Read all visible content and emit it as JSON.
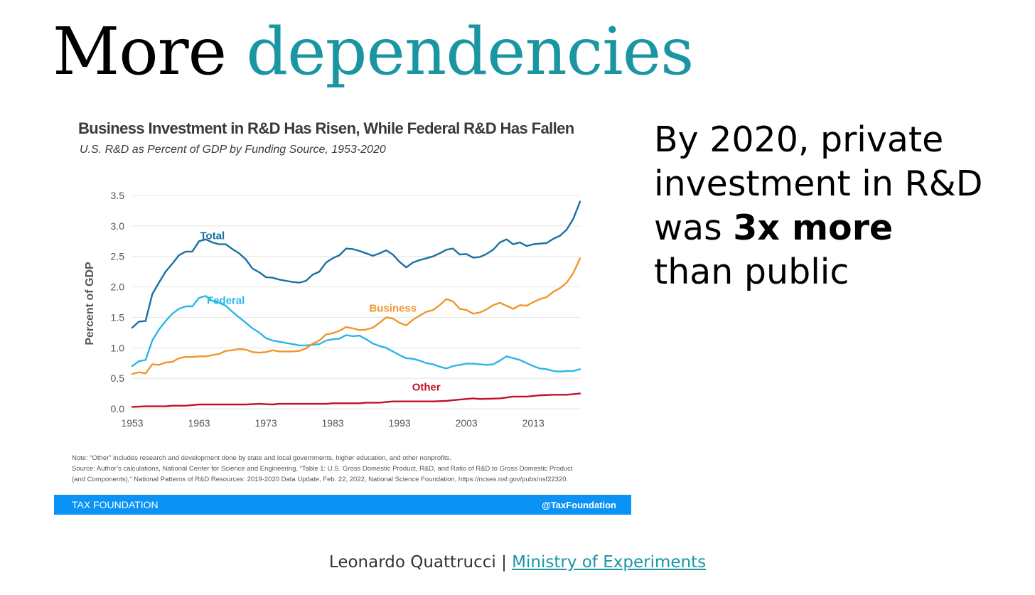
{
  "slide": {
    "title_part1": "More",
    "title_part2": "dependencies",
    "side_line1": "By 2020, private",
    "side_line2": "investment in R&D",
    "side_line3_prefix": "was",
    "side_line3_bold": "3x more",
    "side_line4": "than public",
    "credit_author": "Leonardo Quattrucci |",
    "credit_link": "Ministry of Experiments"
  },
  "colors": {
    "title_accent": "#1a96a3",
    "total": "#1a6fa3",
    "federal": "#29b6e8",
    "business": "#f0962a",
    "other": "#c0102a",
    "footer": "#0a93f5"
  },
  "chart_data": {
    "type": "line",
    "title": "Business Investment in R&D Has Risen, While Federal R&D Has Fallen",
    "subtitle": "U.S. R&D as Percent of GDP by Funding Source, 1953-2020",
    "xlabel": "",
    "ylabel": "Percent of GDP",
    "xlim": [
      1953,
      2020
    ],
    "ylim": [
      0,
      3.5
    ],
    "xticks": [
      1953,
      1963,
      1973,
      1983,
      1993,
      2003,
      2013
    ],
    "yticks": [
      "0.0",
      "0.5",
      "1.0",
      "1.5",
      "2.0",
      "2.5",
      "3.0",
      "3.5"
    ],
    "grid": true,
    "series": [
      {
        "name": "Total",
        "color": "#1a6fa3",
        "label_at": [
          1965,
          2.78
        ],
        "points": [
          [
            1953,
            1.33
          ],
          [
            1954,
            1.43
          ],
          [
            1955,
            1.44
          ],
          [
            1956,
            1.88
          ],
          [
            1957,
            2.07
          ],
          [
            1958,
            2.25
          ],
          [
            1959,
            2.38
          ],
          [
            1960,
            2.52
          ],
          [
            1961,
            2.58
          ],
          [
            1962,
            2.58
          ],
          [
            1963,
            2.75
          ],
          [
            1964,
            2.78
          ],
          [
            1965,
            2.73
          ],
          [
            1966,
            2.7
          ],
          [
            1967,
            2.7
          ],
          [
            1968,
            2.62
          ],
          [
            1969,
            2.55
          ],
          [
            1970,
            2.45
          ],
          [
            1971,
            2.3
          ],
          [
            1972,
            2.24
          ],
          [
            1973,
            2.16
          ],
          [
            1974,
            2.15
          ],
          [
            1975,
            2.12
          ],
          [
            1976,
            2.1
          ],
          [
            1977,
            2.08
          ],
          [
            1978,
            2.07
          ],
          [
            1979,
            2.1
          ],
          [
            1980,
            2.2
          ],
          [
            1981,
            2.25
          ],
          [
            1982,
            2.4
          ],
          [
            1983,
            2.47
          ],
          [
            1984,
            2.52
          ],
          [
            1985,
            2.63
          ],
          [
            1986,
            2.62
          ],
          [
            1987,
            2.59
          ],
          [
            1988,
            2.55
          ],
          [
            1989,
            2.51
          ],
          [
            1990,
            2.55
          ],
          [
            1991,
            2.6
          ],
          [
            1992,
            2.53
          ],
          [
            1993,
            2.41
          ],
          [
            1994,
            2.32
          ],
          [
            1995,
            2.4
          ],
          [
            1996,
            2.44
          ],
          [
            1997,
            2.47
          ],
          [
            1998,
            2.5
          ],
          [
            1999,
            2.55
          ],
          [
            2000,
            2.61
          ],
          [
            2001,
            2.63
          ],
          [
            2002,
            2.53
          ],
          [
            2003,
            2.54
          ],
          [
            2004,
            2.48
          ],
          [
            2005,
            2.49
          ],
          [
            2006,
            2.54
          ],
          [
            2007,
            2.61
          ],
          [
            2008,
            2.73
          ],
          [
            2009,
            2.78
          ],
          [
            2010,
            2.7
          ],
          [
            2011,
            2.73
          ],
          [
            2012,
            2.67
          ],
          [
            2013,
            2.7
          ],
          [
            2014,
            2.71
          ],
          [
            2015,
            2.72
          ],
          [
            2016,
            2.79
          ],
          [
            2017,
            2.84
          ],
          [
            2018,
            2.94
          ],
          [
            2019,
            3.12
          ],
          [
            2020,
            3.4
          ]
        ]
      },
      {
        "name": "Federal",
        "color": "#29b6e8",
        "label_at": [
          1967,
          1.72
        ],
        "points": [
          [
            1953,
            0.7
          ],
          [
            1954,
            0.78
          ],
          [
            1955,
            0.8
          ],
          [
            1956,
            1.12
          ],
          [
            1957,
            1.3
          ],
          [
            1958,
            1.44
          ],
          [
            1959,
            1.56
          ],
          [
            1960,
            1.64
          ],
          [
            1961,
            1.68
          ],
          [
            1962,
            1.68
          ],
          [
            1963,
            1.82
          ],
          [
            1964,
            1.85
          ],
          [
            1965,
            1.77
          ],
          [
            1966,
            1.74
          ],
          [
            1967,
            1.69
          ],
          [
            1968,
            1.59
          ],
          [
            1969,
            1.5
          ],
          [
            1970,
            1.41
          ],
          [
            1971,
            1.32
          ],
          [
            1972,
            1.25
          ],
          [
            1973,
            1.16
          ],
          [
            1974,
            1.12
          ],
          [
            1975,
            1.1
          ],
          [
            1976,
            1.08
          ],
          [
            1977,
            1.06
          ],
          [
            1978,
            1.04
          ],
          [
            1979,
            1.04
          ],
          [
            1980,
            1.05
          ],
          [
            1981,
            1.06
          ],
          [
            1982,
            1.12
          ],
          [
            1983,
            1.14
          ],
          [
            1984,
            1.15
          ],
          [
            1985,
            1.21
          ],
          [
            1986,
            1.19
          ],
          [
            1987,
            1.2
          ],
          [
            1988,
            1.14
          ],
          [
            1989,
            1.07
          ],
          [
            1990,
            1.03
          ],
          [
            1991,
            1.0
          ],
          [
            1992,
            0.94
          ],
          [
            1993,
            0.88
          ],
          [
            1994,
            0.83
          ],
          [
            1995,
            0.82
          ],
          [
            1996,
            0.79
          ],
          [
            1997,
            0.75
          ],
          [
            1998,
            0.73
          ],
          [
            1999,
            0.69
          ],
          [
            2000,
            0.66
          ],
          [
            2001,
            0.7
          ],
          [
            2002,
            0.72
          ],
          [
            2003,
            0.74
          ],
          [
            2004,
            0.74
          ],
          [
            2005,
            0.73
          ],
          [
            2006,
            0.72
          ],
          [
            2007,
            0.73
          ],
          [
            2008,
            0.79
          ],
          [
            2009,
            0.86
          ],
          [
            2010,
            0.83
          ],
          [
            2011,
            0.8
          ],
          [
            2012,
            0.75
          ],
          [
            2013,
            0.7
          ],
          [
            2014,
            0.66
          ],
          [
            2015,
            0.65
          ],
          [
            2016,
            0.62
          ],
          [
            2017,
            0.61
          ],
          [
            2018,
            0.62
          ],
          [
            2019,
            0.62
          ],
          [
            2020,
            0.65
          ]
        ]
      },
      {
        "name": "Business",
        "color": "#f0962a",
        "label_at": [
          1992,
          1.59
        ],
        "points": [
          [
            1953,
            0.57
          ],
          [
            1954,
            0.6
          ],
          [
            1955,
            0.58
          ],
          [
            1956,
            0.73
          ],
          [
            1957,
            0.72
          ],
          [
            1958,
            0.76
          ],
          [
            1959,
            0.77
          ],
          [
            1960,
            0.83
          ],
          [
            1961,
            0.85
          ],
          [
            1962,
            0.85
          ],
          [
            1963,
            0.86
          ],
          [
            1964,
            0.86
          ],
          [
            1965,
            0.88
          ],
          [
            1966,
            0.9
          ],
          [
            1967,
            0.95
          ],
          [
            1968,
            0.96
          ],
          [
            1969,
            0.98
          ],
          [
            1970,
            0.97
          ],
          [
            1971,
            0.93
          ],
          [
            1972,
            0.92
          ],
          [
            1973,
            0.93
          ],
          [
            1974,
            0.96
          ],
          [
            1975,
            0.94
          ],
          [
            1976,
            0.94
          ],
          [
            1977,
            0.94
          ],
          [
            1978,
            0.95
          ],
          [
            1979,
            0.99
          ],
          [
            1980,
            1.07
          ],
          [
            1981,
            1.12
          ],
          [
            1982,
            1.22
          ],
          [
            1983,
            1.24
          ],
          [
            1984,
            1.28
          ],
          [
            1985,
            1.34
          ],
          [
            1986,
            1.32
          ],
          [
            1987,
            1.29
          ],
          [
            1988,
            1.3
          ],
          [
            1989,
            1.33
          ],
          [
            1990,
            1.41
          ],
          [
            1991,
            1.5
          ],
          [
            1992,
            1.48
          ],
          [
            1993,
            1.41
          ],
          [
            1994,
            1.37
          ],
          [
            1995,
            1.46
          ],
          [
            1996,
            1.53
          ],
          [
            1997,
            1.59
          ],
          [
            1998,
            1.62
          ],
          [
            1999,
            1.7
          ],
          [
            2000,
            1.8
          ],
          [
            2001,
            1.76
          ],
          [
            2002,
            1.64
          ],
          [
            2003,
            1.62
          ],
          [
            2004,
            1.56
          ],
          [
            2005,
            1.58
          ],
          [
            2006,
            1.63
          ],
          [
            2007,
            1.7
          ],
          [
            2008,
            1.74
          ],
          [
            2009,
            1.69
          ],
          [
            2010,
            1.64
          ],
          [
            2011,
            1.7
          ],
          [
            2012,
            1.69
          ],
          [
            2013,
            1.75
          ],
          [
            2014,
            1.8
          ],
          [
            2015,
            1.83
          ],
          [
            2016,
            1.92
          ],
          [
            2017,
            1.98
          ],
          [
            2018,
            2.07
          ],
          [
            2019,
            2.23
          ],
          [
            2020,
            2.47
          ]
        ]
      },
      {
        "name": "Other",
        "color": "#c0102a",
        "label_at": [
          1997,
          0.3
        ],
        "points": [
          [
            1953,
            0.03
          ],
          [
            1955,
            0.04
          ],
          [
            1958,
            0.04
          ],
          [
            1959,
            0.05
          ],
          [
            1961,
            0.05
          ],
          [
            1963,
            0.07
          ],
          [
            1970,
            0.07
          ],
          [
            1972,
            0.08
          ],
          [
            1974,
            0.07
          ],
          [
            1975,
            0.08
          ],
          [
            1982,
            0.08
          ],
          [
            1983,
            0.09
          ],
          [
            1987,
            0.09
          ],
          [
            1988,
            0.1
          ],
          [
            1990,
            0.1
          ],
          [
            1992,
            0.12
          ],
          [
            1998,
            0.12
          ],
          [
            2000,
            0.13
          ],
          [
            2002,
            0.15
          ],
          [
            2004,
            0.17
          ],
          [
            2005,
            0.16
          ],
          [
            2008,
            0.17
          ],
          [
            2010,
            0.2
          ],
          [
            2012,
            0.2
          ],
          [
            2014,
            0.22
          ],
          [
            2016,
            0.23
          ],
          [
            2018,
            0.23
          ],
          [
            2020,
            0.25
          ]
        ]
      }
    ]
  },
  "notes": {
    "line1": "Note: “Other” includes research and development done by state and local governments, higher education, and other nonprofits.",
    "line2": "Source: Author’s calculations, National Center for Science and Engineering, “Table 1: U.S. Gross Domestic Product, R&D, and Ratio of R&D to Gross Domestic Product",
    "line3": "(and Components),” National Patterns of R&D Resources: 2019-2020 Data Update, Feb. 22, 2022, National Science Foundation, https://ncses.nsf.gov/pubs/nsf22320."
  },
  "footer": {
    "org": "TAX FOUNDATION",
    "handle": "@TaxFoundation"
  }
}
